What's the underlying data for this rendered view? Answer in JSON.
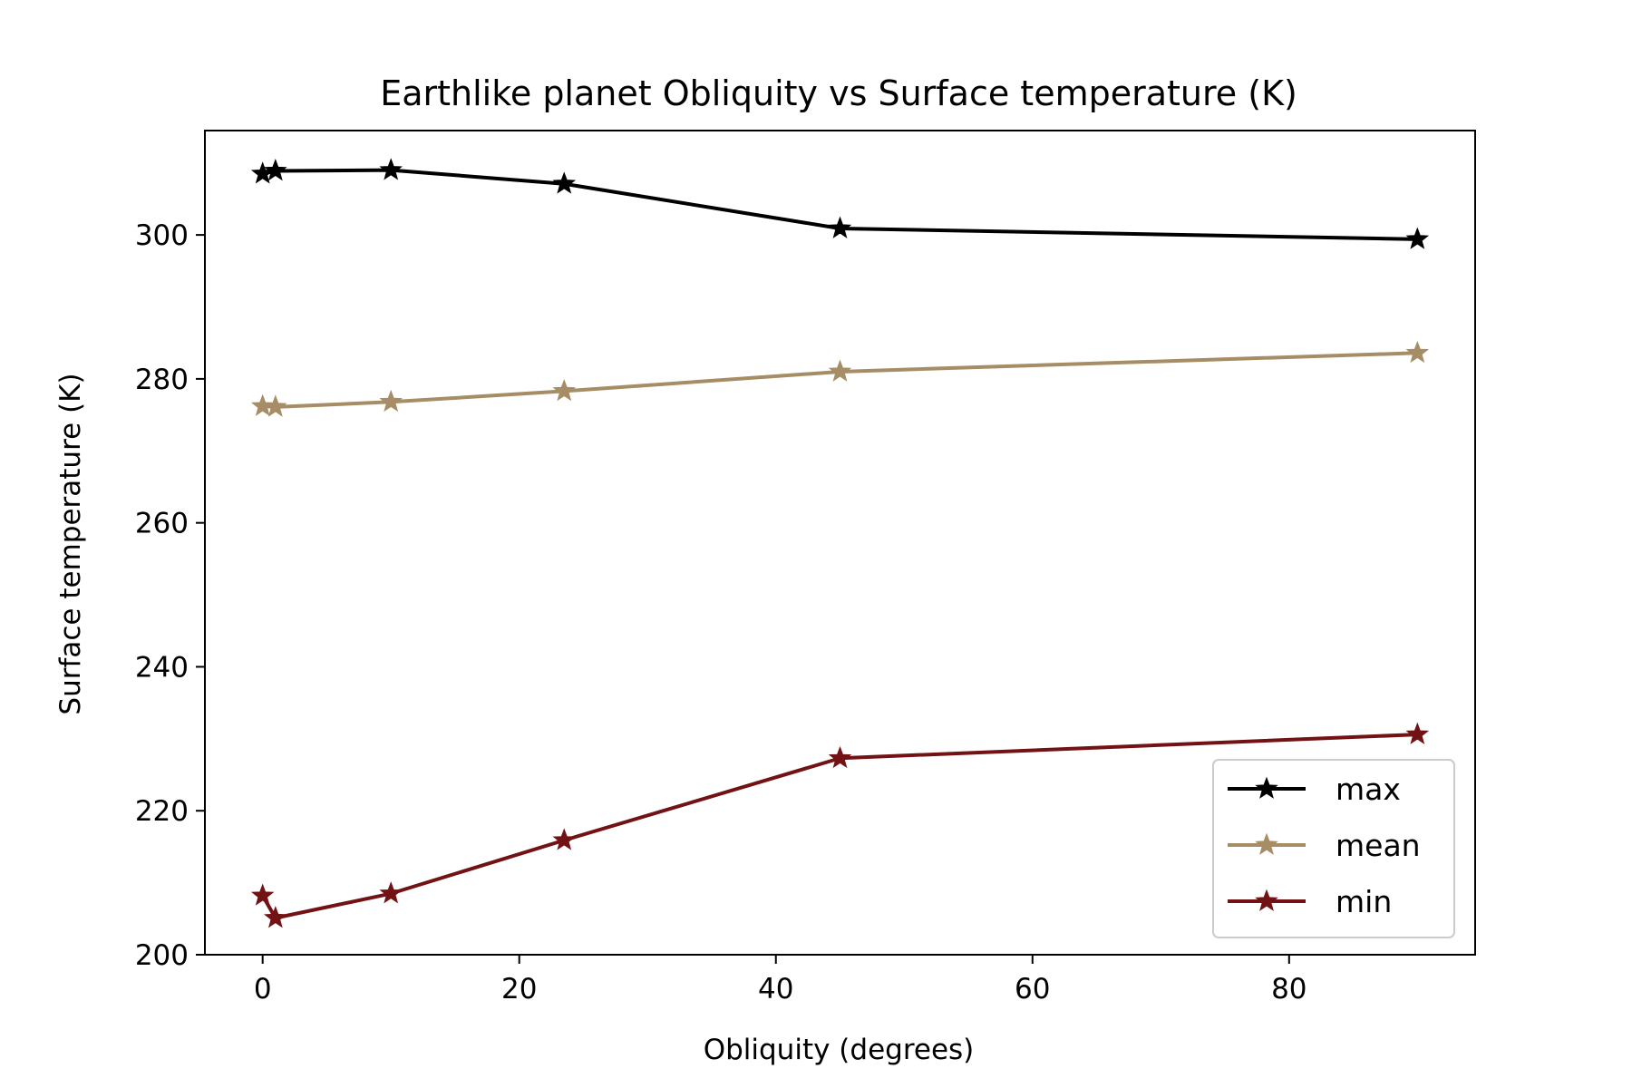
{
  "chart_data": {
    "type": "line",
    "title": "Earthlike planet Obliquity vs Surface temperature (K)",
    "xlabel": "Obliquity (degrees)",
    "ylabel": "Surface temperature (K)",
    "xlim": [
      -4.5,
      94.5
    ],
    "ylim": [
      200,
      314.5
    ],
    "xticks": [
      0,
      20,
      40,
      60,
      80
    ],
    "yticks": [
      200,
      220,
      240,
      260,
      280,
      300
    ],
    "grid": false,
    "legend_position": "lower-right",
    "marker": "star",
    "x": [
      0,
      1,
      10,
      23.5,
      45,
      90
    ],
    "series": [
      {
        "name": "max",
        "color": "#000000",
        "values": [
          308.5,
          308.9,
          309.0,
          307.1,
          300.9,
          299.4
        ]
      },
      {
        "name": "mean",
        "color": "#A68D65",
        "values": [
          276.2,
          276.1,
          276.8,
          278.3,
          281.0,
          283.6
        ]
      },
      {
        "name": "min",
        "color": "#731214",
        "values": [
          208.2,
          205.1,
          208.5,
          215.9,
          227.3,
          230.6
        ]
      }
    ]
  }
}
